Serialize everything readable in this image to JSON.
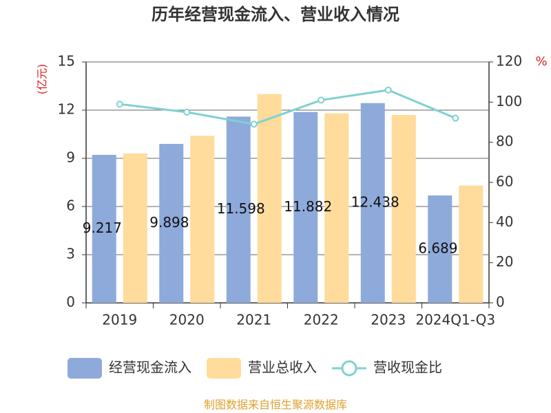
{
  "chart_data": {
    "type": "bar",
    "title": "历年经营现金流入、营业收入情况",
    "y_label": "(亿元)",
    "y2_label": "%",
    "footer": "制图数据来自恒生聚源数据库",
    "categories": [
      "2019",
      "2020",
      "2021",
      "2022",
      "2023",
      "2024Q1-Q3"
    ],
    "series": [
      {
        "name": "经营现金流入",
        "color": "#8eaadb",
        "values": [
          9.217,
          9.898,
          11.598,
          11.882,
          12.438,
          6.689
        ],
        "data_labels": true
      },
      {
        "name": "营业总收入",
        "color": "#ffdb9c",
        "values": [
          9.3,
          10.4,
          13.0,
          11.8,
          11.7,
          7.3
        ]
      },
      {
        "name": "营收现金比",
        "color": "#7fd1d1",
        "type": "line",
        "axis": "y2",
        "values": [
          99,
          95,
          89,
          101,
          106,
          92
        ]
      }
    ],
    "ylim": [
      0,
      15
    ],
    "yticks": [
      0,
      3,
      6,
      9,
      12,
      15
    ],
    "y2lim": [
      0,
      120
    ],
    "y2ticks": [
      0,
      20,
      40,
      60,
      80,
      100,
      120
    ],
    "grid": true
  }
}
